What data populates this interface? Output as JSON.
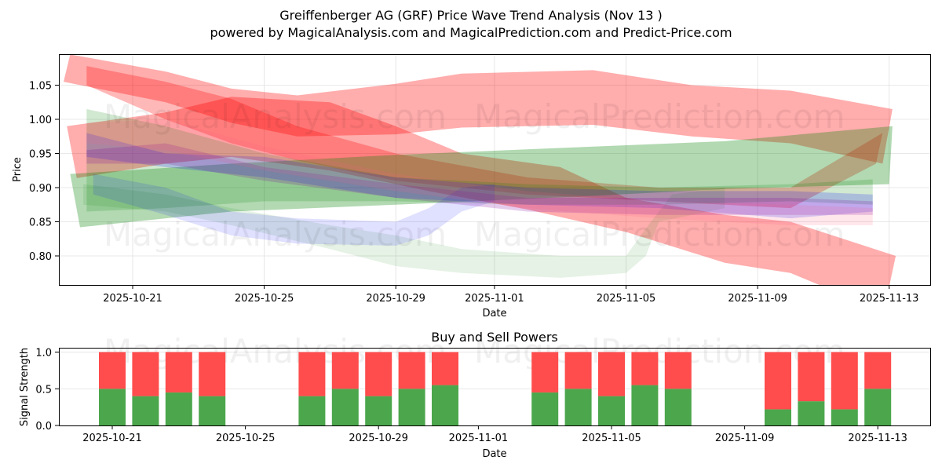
{
  "header": {
    "title": "Greiffenberger AG (GRF) Price Wave Trend Analysis (Nov 13 )",
    "subtitle": "powered by MagicalAnalysis.com and MagicalPrediction.com and Predict-Price.com"
  },
  "watermarks": [
    "MagicalAnalysis.com",
    "MagicalPrediction.com"
  ],
  "colors": {
    "red_band": "#ff0000",
    "green_band": "#008000",
    "blue_band": "#0000ff",
    "buy": "#4ca64c",
    "sell": "#ff4c4c",
    "grid": "#e0e0e0"
  },
  "chart_data": [
    {
      "type": "area",
      "title": "Greiffenberger AG (GRF) Price Wave Trend Analysis (Nov 13 )",
      "xlabel": "Date",
      "ylabel": "Price",
      "x_ticks": [
        "2025-10-21",
        "2025-10-25",
        "2025-10-29",
        "2025-11-01",
        "2025-11-05",
        "2025-11-09",
        "2025-11-13"
      ],
      "y_ticks": [
        "0.80",
        "0.85",
        "0.90",
        "0.95",
        "1.00",
        "1.05"
      ],
      "ylim": [
        0.76,
        1.094
      ],
      "xlim": [
        "2025-10-18",
        "2025-11-14"
      ],
      "grid": true,
      "x_day0": "2025-10-21",
      "bands": [
        {
          "name": "red-upper-band",
          "color": "#ff0000",
          "opacity": 0.32,
          "upper": [
            [
              -1.9,
              1.095
            ],
            [
              1,
              1.07
            ],
            [
              3,
              1.045
            ],
            [
              5,
              1.035
            ],
            [
              8,
              1.052
            ],
            [
              10,
              1.067
            ],
            [
              14,
              1.072
            ],
            [
              17,
              1.05
            ],
            [
              20,
              1.042
            ],
            [
              23.1,
              1.015
            ]
          ],
          "lower": [
            [
              -2.1,
              1.055
            ],
            [
              1,
              1.025
            ],
            [
              3,
              0.995
            ],
            [
              5,
              0.975
            ],
            [
              8,
              0.978
            ],
            [
              10,
              0.988
            ],
            [
              14,
              0.992
            ],
            [
              17,
              0.975
            ],
            [
              20,
              0.965
            ],
            [
              22.8,
              0.935
            ]
          ]
        },
        {
          "name": "red-descending-band",
          "color": "#ff0000",
          "opacity": 0.32,
          "upper": [
            [
              -2,
              0.99
            ],
            [
              1,
              1.01
            ],
            [
              3,
              1.033
            ],
            [
              6,
              1.025
            ],
            [
              8,
              0.99
            ],
            [
              10,
              0.95
            ],
            [
              13,
              0.93
            ],
            [
              15,
              0.885
            ],
            [
              18,
              0.86
            ],
            [
              20,
              0.85
            ],
            [
              23.2,
              0.8
            ]
          ],
          "lower": [
            [
              -1.7,
              0.914
            ],
            [
              1,
              0.935
            ],
            [
              3,
              0.945
            ],
            [
              6,
              0.925
            ],
            [
              9,
              0.895
            ],
            [
              12,
              0.868
            ],
            [
              15,
              0.835
            ],
            [
              18,
              0.79
            ],
            [
              20,
              0.775
            ],
            [
              21,
              0.755
            ],
            [
              23,
              0.755
            ]
          ]
        },
        {
          "name": "red-overlap-band",
          "color": "#ff0000",
          "opacity": 0.28,
          "upper": [
            [
              -1.4,
              1.078
            ],
            [
              1,
              1.055
            ],
            [
              3,
              1.03
            ],
            [
              5,
              0.99
            ],
            [
              8,
              0.95
            ],
            [
              12,
              0.915
            ],
            [
              16,
              0.9
            ],
            [
              20,
              0.9
            ],
            [
              22.8,
              0.98
            ]
          ],
          "lower": [
            [
              -1.4,
              1.05
            ],
            [
              1,
              1.0
            ],
            [
              3,
              0.965
            ],
            [
              5,
              0.94
            ],
            [
              8,
              0.91
            ],
            [
              12,
              0.89
            ],
            [
              16,
              0.88
            ],
            [
              20,
              0.87
            ],
            [
              22.6,
              0.935
            ]
          ]
        },
        {
          "name": "green-wide-band",
          "color": "#008000",
          "opacity": 0.3,
          "upper": [
            [
              -1.9,
              0.92
            ],
            [
              3,
              0.935
            ],
            [
              8,
              0.948
            ],
            [
              14,
              0.96
            ],
            [
              18,
              0.968
            ],
            [
              23.1,
              0.99
            ]
          ],
          "lower": [
            [
              -1.6,
              0.842
            ],
            [
              3,
              0.865
            ],
            [
              8,
              0.875
            ],
            [
              14,
              0.888
            ],
            [
              18,
              0.898
            ],
            [
              23,
              0.905
            ]
          ]
        },
        {
          "name": "green-faded-band",
          "color": "#008000",
          "opacity": 0.1,
          "upper": [
            [
              -1.5,
              0.905
            ],
            [
              1,
              0.89
            ],
            [
              3,
              0.87
            ],
            [
              6,
              0.845
            ],
            [
              8,
              0.83
            ],
            [
              10,
              0.81
            ],
            [
              13,
              0.8
            ],
            [
              15,
              0.8
            ],
            [
              15.6,
              0.84
            ],
            [
              16.4,
              0.89
            ],
            [
              18,
              0.9
            ]
          ],
          "lower": [
            [
              -1.5,
              0.875
            ],
            [
              1,
              0.865
            ],
            [
              3,
              0.845
            ],
            [
              6,
              0.81
            ],
            [
              8,
              0.785
            ],
            [
              10,
              0.775
            ],
            [
              13,
              0.768
            ],
            [
              15,
              0.775
            ],
            [
              15.6,
              0.8
            ],
            [
              16,
              0.85
            ],
            [
              18,
              0.87
            ]
          ]
        },
        {
          "name": "green-mid-band",
          "color": "#008000",
          "opacity": 0.18,
          "upper": [
            [
              -1.4,
              1.015
            ],
            [
              1,
              0.99
            ],
            [
              4,
              0.95
            ],
            [
              8,
              0.915
            ],
            [
              12,
              0.905
            ],
            [
              16,
              0.9
            ],
            [
              20,
              0.905
            ],
            [
              22.5,
              0.912
            ]
          ],
          "lower": [
            [
              -1.4,
              0.865
            ],
            [
              1,
              0.87
            ],
            [
              4,
              0.88
            ],
            [
              8,
              0.88
            ],
            [
              12,
              0.875
            ],
            [
              16,
              0.875
            ],
            [
              20,
              0.88
            ],
            [
              22.5,
              0.875
            ]
          ]
        },
        {
          "name": "blue-low-band",
          "color": "#0000ff",
          "opacity": 0.12,
          "upper": [
            [
              -1.2,
              0.92
            ],
            [
              1,
              0.9
            ],
            [
              3,
              0.865
            ],
            [
              5,
              0.855
            ],
            [
              8,
              0.85
            ],
            [
              9,
              0.87
            ],
            [
              10,
              0.9
            ],
            [
              11,
              0.905
            ]
          ],
          "lower": [
            [
              -1.2,
              0.89
            ],
            [
              1,
              0.86
            ],
            [
              3,
              0.83
            ],
            [
              5,
              0.818
            ],
            [
              8,
              0.815
            ],
            [
              9,
              0.83
            ],
            [
              10,
              0.865
            ],
            [
              11,
              0.88
            ]
          ]
        },
        {
          "name": "blue-mid-band",
          "color": "#0000ff",
          "opacity": 0.18,
          "upper": [
            [
              -1.4,
              0.98
            ],
            [
              1,
              0.95
            ],
            [
              4,
              0.945
            ],
            [
              8,
              0.915
            ],
            [
              12,
              0.9
            ],
            [
              16,
              0.895
            ],
            [
              20,
              0.895
            ],
            [
              22.5,
              0.89
            ]
          ],
          "lower": [
            [
              -1.4,
              0.945
            ],
            [
              1,
              0.93
            ],
            [
              4,
              0.915
            ],
            [
              8,
              0.885
            ],
            [
              12,
              0.875
            ],
            [
              16,
              0.87
            ],
            [
              20,
              0.855
            ],
            [
              22.5,
              0.865
            ]
          ]
        },
        {
          "name": "purple-band",
          "color": "#8000a0",
          "opacity": 0.2,
          "upper": [
            [
              -1.4,
              0.955
            ],
            [
              1,
              0.965
            ],
            [
              4,
              0.93
            ],
            [
              8,
              0.905
            ],
            [
              12,
              0.885
            ],
            [
              16,
              0.885
            ],
            [
              20,
              0.885
            ],
            [
              22.5,
              0.88
            ]
          ],
          "lower": [
            [
              -1.4,
              0.935
            ],
            [
              1,
              0.935
            ],
            [
              4,
              0.91
            ],
            [
              8,
              0.885
            ],
            [
              12,
              0.865
            ],
            [
              16,
              0.86
            ],
            [
              20,
              0.86
            ],
            [
              22.5,
              0.86
            ]
          ]
        },
        {
          "name": "pink-band",
          "color": "#ff6080",
          "opacity": 0.15,
          "upper": [
            [
              -1.4,
              0.995
            ],
            [
              1,
              1.0
            ],
            [
              4,
              0.96
            ],
            [
              8,
              0.92
            ],
            [
              12,
              0.895
            ],
            [
              16,
              0.88
            ],
            [
              20,
              0.875
            ],
            [
              22.5,
              0.87
            ]
          ],
          "lower": [
            [
              -1.4,
              0.965
            ],
            [
              1,
              0.955
            ],
            [
              4,
              0.925
            ],
            [
              8,
              0.895
            ],
            [
              12,
              0.87
            ],
            [
              16,
              0.855
            ],
            [
              20,
              0.845
            ],
            [
              22.5,
              0.845
            ]
          ]
        }
      ]
    },
    {
      "type": "bar",
      "title": "Buy and Sell Powers",
      "xlabel": "Date",
      "ylabel": "Signal Strength",
      "y_ticks": [
        "0.0",
        "0.5",
        "1.0"
      ],
      "ylim": [
        0,
        1.05
      ],
      "x_ticks": [
        "2025-10-21",
        "2025-10-25",
        "2025-10-29",
        "2025-11-01",
        "2025-11-05",
        "2025-11-09",
        "2025-11-13"
      ],
      "categories": [
        "2025-10-21",
        "2025-10-22",
        "2025-10-23",
        "2025-10-24",
        "2025-10-27",
        "2025-10-28",
        "2025-10-29",
        "2025-10-30",
        "2025-10-31",
        "2025-11-03",
        "2025-11-04",
        "2025-11-05",
        "2025-11-06",
        "2025-11-07",
        "2025-11-10",
        "2025-11-11",
        "2025-11-12",
        "2025-11-13"
      ],
      "day_offsets": [
        0,
        1,
        2,
        3,
        6,
        7,
        8,
        9,
        10,
        13,
        14,
        15,
        16,
        17,
        20,
        21,
        22,
        23
      ],
      "series": [
        {
          "name": "Buy",
          "color": "#4ca64c",
          "values": [
            0.5,
            0.4,
            0.45,
            0.4,
            0.4,
            0.5,
            0.4,
            0.5,
            0.55,
            0.45,
            0.5,
            0.4,
            0.55,
            0.5,
            0.22,
            0.33,
            0.22,
            0.5
          ]
        },
        {
          "name": "Sell",
          "color": "#ff4c4c",
          "values": [
            0.5,
            0.6,
            0.55,
            0.6,
            0.6,
            0.5,
            0.6,
            0.5,
            0.45,
            0.55,
            0.5,
            0.6,
            0.45,
            0.5,
            0.78,
            0.67,
            0.78,
            0.5
          ]
        }
      ]
    }
  ]
}
